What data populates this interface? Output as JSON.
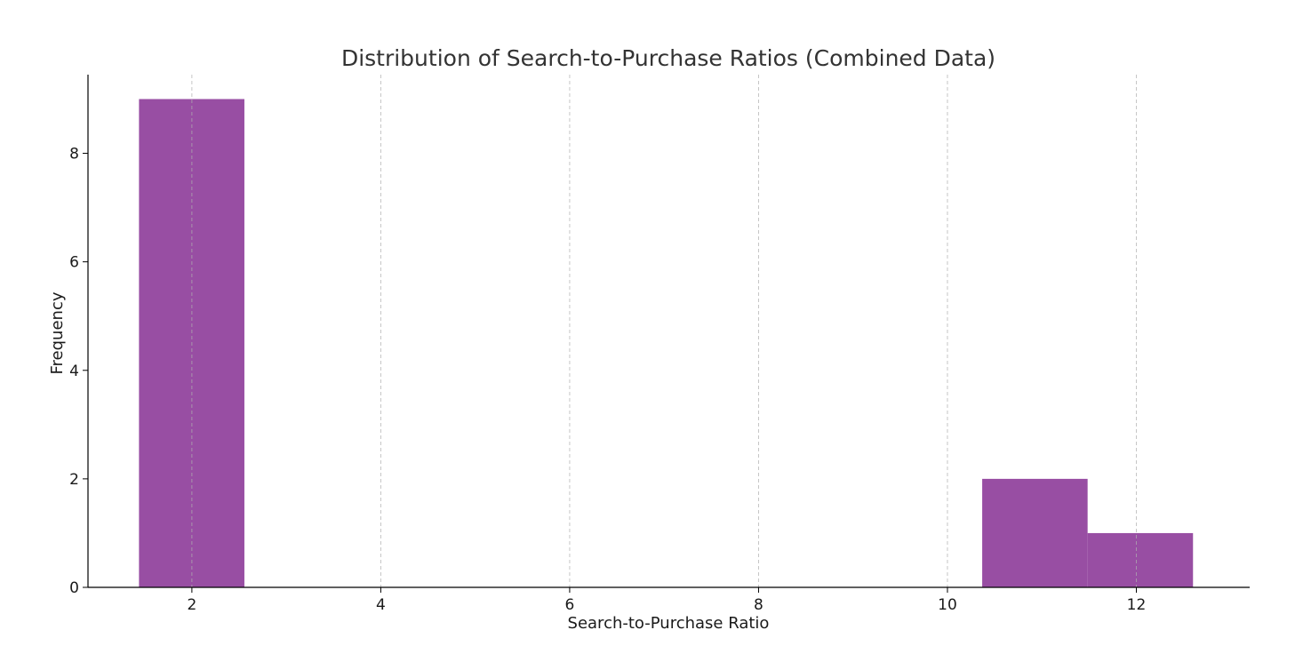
{
  "chart_data": {
    "type": "bar",
    "title": "Distribution of Search-to-Purchase Ratios (Combined Data)",
    "xlabel": "Search-to-Purchase Ratio",
    "ylabel": "Frequency",
    "xlim": [
      0.9,
      13.2
    ],
    "ylim": [
      0,
      9.45
    ],
    "x_ticks": [
      2,
      4,
      6,
      8,
      10,
      12
    ],
    "y_ticks": [
      0,
      2,
      4,
      6,
      8
    ],
    "bins": [
      {
        "start": 1.44,
        "end": 2.556,
        "count": 9
      },
      {
        "start": 2.556,
        "end": 3.672,
        "count": 0
      },
      {
        "start": 3.672,
        "end": 4.788,
        "count": 0
      },
      {
        "start": 4.788,
        "end": 5.904,
        "count": 0
      },
      {
        "start": 5.904,
        "end": 7.02,
        "count": 0
      },
      {
        "start": 7.02,
        "end": 8.136,
        "count": 0
      },
      {
        "start": 8.136,
        "end": 9.252,
        "count": 0
      },
      {
        "start": 9.252,
        "end": 10.368,
        "count": 0
      },
      {
        "start": 10.368,
        "end": 11.484,
        "count": 2
      },
      {
        "start": 11.484,
        "end": 12.6,
        "count": 1
      }
    ],
    "bar_color": "#984ea3",
    "grid": {
      "x": true,
      "y": false,
      "style": "dashed"
    }
  }
}
